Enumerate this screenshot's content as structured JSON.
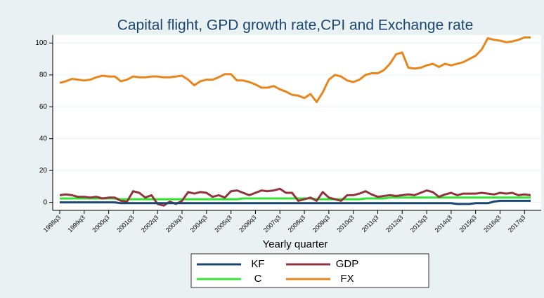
{
  "chart_data": {
    "type": "line",
    "title": "Capital flight, GPD growth rate,CPI and Exchange rate",
    "xlabel": "Yearly quarter",
    "categories": [
      "1998q3",
      null,
      null,
      null,
      "1999q3",
      null,
      null,
      null,
      "2000q3",
      null,
      null,
      null,
      "2001q3",
      null,
      null,
      null,
      "2002q3",
      null,
      null,
      null,
      "2003q3",
      null,
      null,
      null,
      "2004q3",
      null,
      null,
      null,
      "2005q3",
      null,
      null,
      null,
      "2006q3",
      null,
      null,
      null,
      "2007q3",
      null,
      null,
      null,
      "2008q3",
      null,
      null,
      null,
      "2009q3",
      null,
      null,
      null,
      "2010q3",
      null,
      null,
      null,
      "2011q3",
      null,
      null,
      null,
      "2012q3",
      null,
      null,
      null,
      "2013q3",
      null,
      null,
      null,
      "2014q3",
      null,
      null,
      null,
      "2015q3",
      null,
      null,
      null,
      "2016q3",
      null,
      null,
      null,
      "2017q3",
      null
    ],
    "series": [
      {
        "name": "KF",
        "color": "#1a476f",
        "values": [
          0,
          0,
          0,
          0,
          0,
          0,
          0,
          0,
          0,
          0,
          -0.5,
          -0.5,
          -0.5,
          -0.5,
          -0.5,
          -0.5,
          -0.5,
          -0.5,
          -0.5,
          -0.5,
          -0.5,
          -0.5,
          -0.5,
          -0.5,
          -0.5,
          -0.5,
          -0.5,
          -0.5,
          -0.5,
          -0.5,
          -0.5,
          -0.5,
          -0.5,
          -0.5,
          -0.5,
          -0.5,
          -0.5,
          -0.5,
          -0.5,
          -0.5,
          -0.5,
          -0.5,
          -0.5,
          -0.5,
          -0.5,
          -0.5,
          -0.5,
          -0.5,
          -0.5,
          -0.5,
          -0.5,
          -0.5,
          -0.5,
          -0.5,
          -0.5,
          -0.5,
          -0.5,
          -0.5,
          -0.5,
          -0.5,
          -0.5,
          -0.5,
          -0.5,
          -0.5,
          -0.5,
          -1,
          -1,
          -1,
          -0.5,
          -0.5,
          -0.5,
          0.5,
          1,
          1,
          1,
          1,
          1,
          1
        ]
      },
      {
        "name": "GDP",
        "color": "#90353b",
        "values": [
          4.5,
          5,
          4.5,
          3.5,
          3.5,
          3,
          3.5,
          2.5,
          3,
          3,
          1,
          0.5,
          7,
          6,
          3,
          4.5,
          -1,
          -2,
          0.5,
          -1,
          1,
          6.5,
          5.5,
          6.5,
          6,
          3.5,
          4.5,
          3,
          7,
          7.5,
          6,
          4.5,
          6,
          7.5,
          7,
          7.5,
          8.5,
          6,
          6,
          1,
          2,
          3,
          1,
          6.5,
          3,
          2,
          1,
          4.5,
          4.5,
          5.5,
          7,
          5,
          3.5,
          4,
          4.5,
          4,
          4.5,
          5,
          4.5,
          6,
          7.5,
          6.5,
          3.5,
          5,
          6,
          4.5,
          5.5,
          5.5,
          5.5,
          6,
          5.5,
          5,
          6,
          5.5,
          6,
          4.5,
          5,
          4.5
        ]
      },
      {
        "name": "C",
        "color": "#33e633",
        "values": [
          2.5,
          2.5,
          2.5,
          2.5,
          2.5,
          2.5,
          2.5,
          2.5,
          2.5,
          2.5,
          2,
          2,
          2,
          2,
          2,
          2,
          2,
          2,
          2,
          2,
          2,
          2,
          2,
          2,
          2,
          2,
          2,
          2,
          2,
          2,
          2.5,
          2.5,
          2.5,
          2.5,
          2.5,
          2.5,
          2.5,
          2.5,
          2.5,
          2.5,
          2.5,
          2.5,
          2,
          2,
          2,
          2,
          2,
          2,
          2,
          2,
          2.5,
          2.5,
          2.5,
          2.5,
          3,
          3,
          3,
          3,
          3,
          3,
          3,
          3,
          3,
          3,
          3,
          3,
          3,
          3,
          3,
          3,
          3,
          3,
          3,
          3,
          3,
          3,
          3,
          3
        ]
      },
      {
        "name": "FX",
        "color": "#e8861c",
        "values": [
          75,
          76,
          77.5,
          77,
          76.5,
          77,
          78.5,
          79.5,
          79,
          79,
          76,
          77,
          79,
          78.5,
          78.5,
          79,
          79,
          78.5,
          78.5,
          79,
          79.5,
          77,
          73.5,
          76,
          77,
          77,
          78.5,
          80.5,
          80.5,
          76.5,
          76.5,
          75.5,
          74,
          72,
          72,
          73,
          71,
          69.5,
          67.5,
          67,
          65.5,
          68,
          63,
          69,
          77,
          80,
          79,
          76.5,
          75.5,
          77,
          80,
          81,
          81,
          83,
          87,
          93,
          94,
          84.5,
          84,
          84.5,
          86,
          87,
          85,
          87,
          86,
          87,
          88,
          90,
          92,
          96,
          103,
          102,
          101.5,
          100.5,
          101,
          102,
          103.5,
          103.5
        ]
      }
    ],
    "ylim": [
      -5,
      105
    ],
    "yticks": [
      0,
      20,
      40,
      60,
      80,
      100
    ],
    "grid": true
  }
}
